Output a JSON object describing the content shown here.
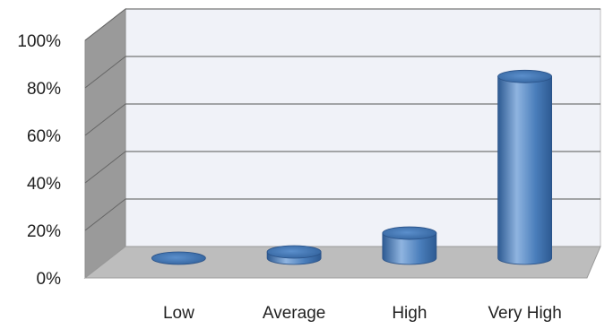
{
  "chart_data": {
    "type": "bar",
    "style": "3d-cylinder",
    "categories": [
      "Low",
      "Average",
      "High",
      "Very High"
    ],
    "values": [
      0,
      3,
      12,
      87
    ],
    "ylim": [
      0,
      100
    ],
    "yticks": [
      "0%",
      "20%",
      "40%",
      "60%",
      "80%",
      "100%"
    ],
    "grid": true,
    "legend": "none",
    "colors": {
      "bar": "#4a7ebb",
      "bar_dark": "#2d5a92",
      "bar_light": "#8fb4e0",
      "wall": "#f0f2f8",
      "side_wall": "#9a9a9a",
      "floor": "#bdbdbd"
    }
  }
}
